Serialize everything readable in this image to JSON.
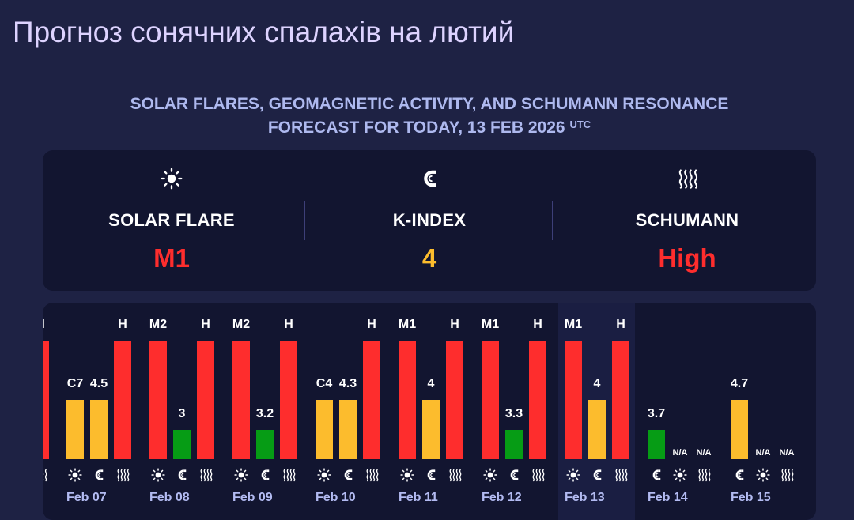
{
  "page_title": "Прогноз сонячних спалахів на лютий",
  "subtitle": {
    "line1": "SOLAR FLARES, GEOMAGNETIC ACTIVITY, AND SCHUMANN RESONANCE",
    "line2": "FORECAST FOR TODAY, 13 FEB 2026",
    "tz": "UTC"
  },
  "colors": {
    "red": "#fe2d2d",
    "yellow": "#fcbc2d",
    "green": "#069c15",
    "title": "#ddd3ff",
    "date_label": "#b3bbf2"
  },
  "summary": [
    {
      "icon": "sun-icon",
      "label": "SOLAR FLARE",
      "value": "M1",
      "level": "red"
    },
    {
      "icon": "magnet-icon",
      "label": "K-INDEX",
      "value": "4",
      "level": "yellow"
    },
    {
      "icon": "waves-icon",
      "label": "SCHUMANN",
      "value": "High",
      "level": "red"
    }
  ],
  "chart_data": {
    "type": "bar",
    "categories": [
      "Feb 07",
      "Feb 08",
      "Feb 09",
      "Feb 10",
      "Feb 11",
      "Feb 12",
      "Feb 13",
      "Feb 14",
      "Feb 15"
    ],
    "today": "Feb 13",
    "partial_left": {
      "schumann": {
        "label": "H",
        "level": 3,
        "color": "red"
      }
    },
    "days": [
      {
        "date": "Feb 07",
        "flare": {
          "label": "C7",
          "level": 2,
          "color": "yellow"
        },
        "kindex": {
          "label": "4.5",
          "level": 2,
          "color": "yellow"
        },
        "schumann": {
          "label": "H",
          "level": 3,
          "color": "red"
        }
      },
      {
        "date": "Feb 08",
        "flare": {
          "label": "M2",
          "level": 3,
          "color": "red"
        },
        "kindex": {
          "label": "3",
          "level": 1,
          "color": "green"
        },
        "schumann": {
          "label": "H",
          "level": 3,
          "color": "red"
        }
      },
      {
        "date": "Feb 09",
        "flare": {
          "label": "M2",
          "level": 3,
          "color": "red"
        },
        "kindex": {
          "label": "3.2",
          "level": 1,
          "color": "green"
        },
        "schumann": {
          "label": "H",
          "level": 3,
          "color": "red"
        }
      },
      {
        "date": "Feb 10",
        "flare": {
          "label": "C4",
          "level": 2,
          "color": "yellow"
        },
        "kindex": {
          "label": "4.3",
          "level": 2,
          "color": "yellow"
        },
        "schumann": {
          "label": "H",
          "level": 3,
          "color": "red"
        }
      },
      {
        "date": "Feb 11",
        "flare": {
          "label": "M1",
          "level": 3,
          "color": "red"
        },
        "kindex": {
          "label": "4",
          "level": 2,
          "color": "yellow"
        },
        "schumann": {
          "label": "H",
          "level": 3,
          "color": "red"
        }
      },
      {
        "date": "Feb 12",
        "flare": {
          "label": "M1",
          "level": 3,
          "color": "red"
        },
        "kindex": {
          "label": "3.3",
          "level": 1,
          "color": "green"
        },
        "schumann": {
          "label": "H",
          "level": 3,
          "color": "red"
        }
      },
      {
        "date": "Feb 13",
        "flare": {
          "label": "M1",
          "level": 3,
          "color": "red"
        },
        "kindex": {
          "label": "4",
          "level": 2,
          "color": "yellow"
        },
        "schumann": {
          "label": "H",
          "level": 3,
          "color": "red"
        }
      },
      {
        "date": "Feb 14",
        "kindex": {
          "label": "3.7",
          "level": 1,
          "color": "green"
        },
        "flare": {
          "label": "N/A",
          "level": 0
        },
        "schumann": {
          "label": "N/A",
          "level": 0
        }
      },
      {
        "date": "Feb 15",
        "kindex": {
          "label": "4.7",
          "level": 2,
          "color": "yellow"
        },
        "flare": {
          "label": "N/A",
          "level": 0
        },
        "schumann": {
          "label": "N/A",
          "level": 0
        }
      }
    ]
  }
}
